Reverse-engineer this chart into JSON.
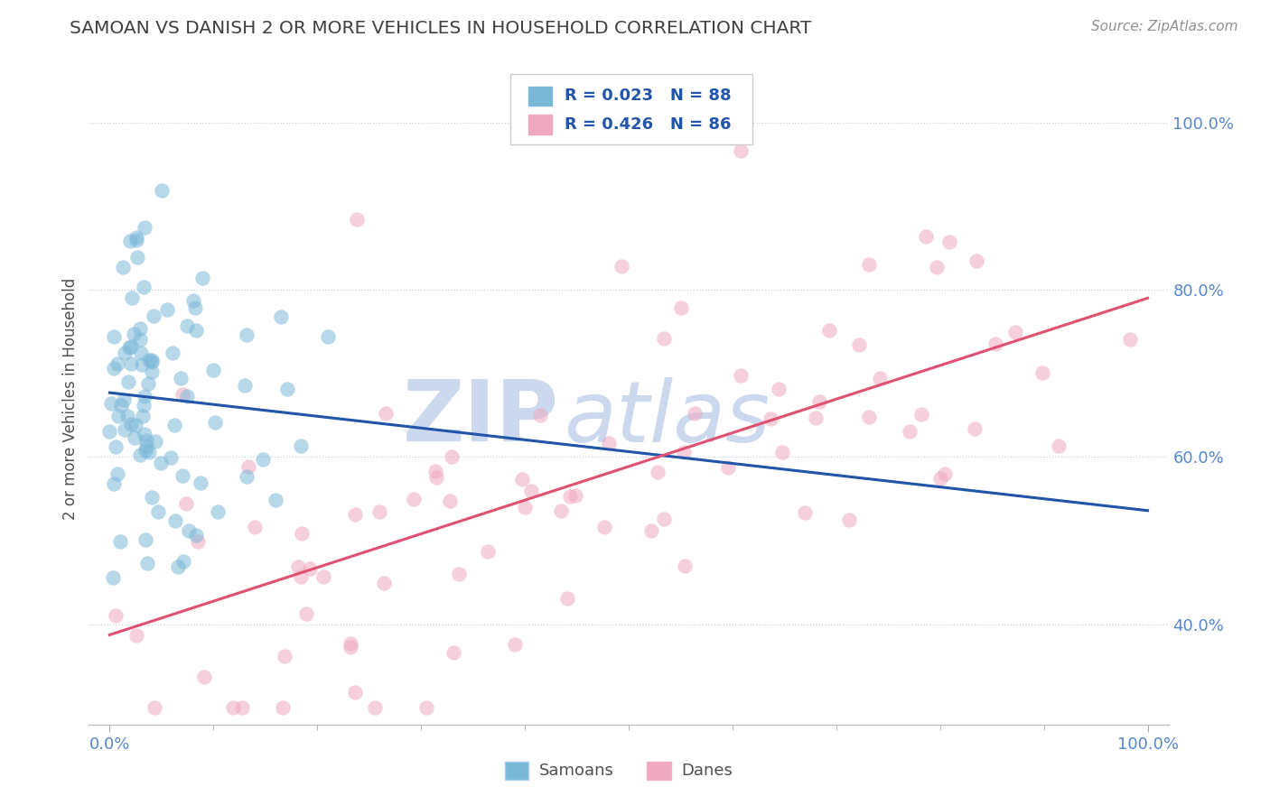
{
  "title": "SAMOAN VS DANISH 2 OR MORE VEHICLES IN HOUSEHOLD CORRELATION CHART",
  "source_text": "Source: ZipAtlas.com",
  "ylabel": "2 or more Vehicles in Household",
  "xlim": [
    -0.02,
    1.02
  ],
  "ylim": [
    0.28,
    1.06
  ],
  "x_tick_positions": [
    0.0,
    1.0
  ],
  "x_tick_labels": [
    "0.0%",
    "100.0%"
  ],
  "y_tick_values": [
    0.4,
    0.6,
    0.8,
    1.0
  ],
  "y_tick_labels": [
    "40.0%",
    "60.0%",
    "80.0%",
    "100.0%"
  ],
  "legend_entries": [
    {
      "label": "Samoans",
      "color": "#a8c8e8",
      "R": "0.023",
      "N": "88"
    },
    {
      "label": "Danes",
      "color": "#f4b0c4",
      "R": "0.426",
      "N": "86"
    }
  ],
  "blue_line_color": "#2255aa",
  "pink_line_color": "#e05070",
  "dashed_line_color": "#9aaac0",
  "watermark_zip": "ZIP",
  "watermark_atlas": "atlas",
  "watermark_color": "#ccd8ee",
  "background_color": "#ffffff",
  "scatter_blue_color": "#7ab8d8",
  "scatter_pink_color": "#f0a8c0",
  "title_color": "#404040",
  "axis_label_color": "#505050",
  "tick_label_color": "#5588cc",
  "source_color": "#909090",
  "legend_text_color": "#2255aa",
  "grid_color": "#d8dde8",
  "grid_dotted_color": "#c8d0e0"
}
